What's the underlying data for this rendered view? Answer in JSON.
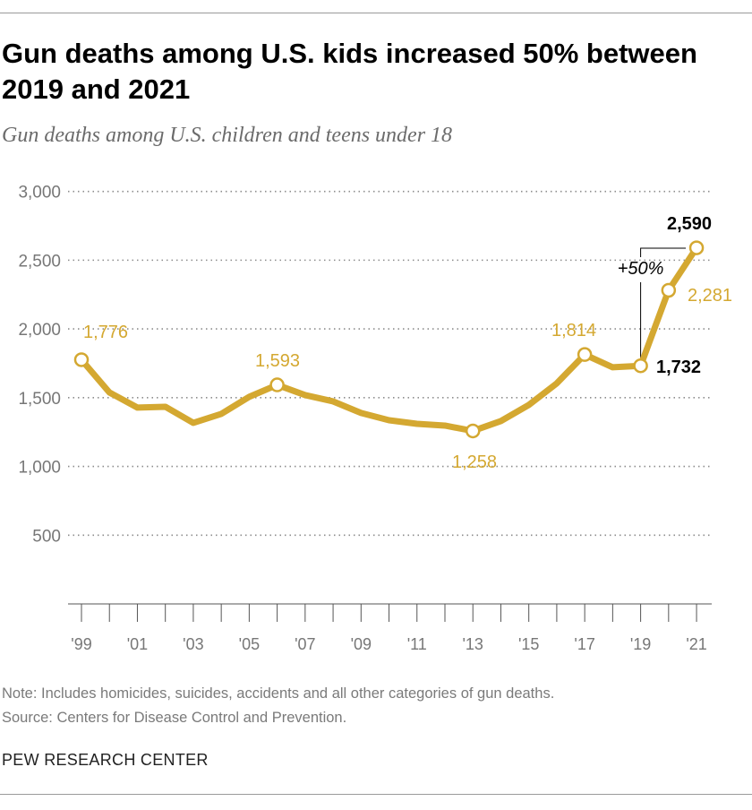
{
  "header": {
    "title": "Gun deaths among U.S. kids increased 50% between 2019 and 2021",
    "subtitle": "Gun deaths among U.S. children and teens under 18"
  },
  "footer": {
    "note": "Note: Includes homicides, suicides, accidents and all other categories of gun deaths.",
    "source": "Source: Centers for Disease Control and Prevention.",
    "brand": "PEW RESEARCH CENTER"
  },
  "chart_data": {
    "type": "line",
    "title": "Gun deaths among U.S. kids increased 50% between 2019 and 2021",
    "subtitle": "Gun deaths among U.S. children and teens under 18",
    "x": [
      1999,
      2000,
      2001,
      2002,
      2003,
      2004,
      2005,
      2006,
      2007,
      2008,
      2009,
      2010,
      2011,
      2012,
      2013,
      2014,
      2015,
      2016,
      2017,
      2018,
      2019,
      2020,
      2021
    ],
    "values": [
      1776,
      1538,
      1428,
      1434,
      1317,
      1382,
      1506,
      1593,
      1519,
      1473,
      1389,
      1336,
      1310,
      1297,
      1258,
      1330,
      1447,
      1604,
      1814,
      1721,
      1732,
      2281,
      2590
    ],
    "ylim": [
      0,
      3000
    ],
    "yticks": [
      500,
      1000,
      1500,
      2000,
      2500,
      3000
    ],
    "ytick_labels": [
      "500",
      "1,000",
      "1,500",
      "2,000",
      "2,500",
      "3,000"
    ],
    "xtick_labels": [
      {
        "year": 1999,
        "label": "'99"
      },
      {
        "year": 2001,
        "label": "'01"
      },
      {
        "year": 2003,
        "label": "'03"
      },
      {
        "year": 2005,
        "label": "'05"
      },
      {
        "year": 2007,
        "label": "'07"
      },
      {
        "year": 2009,
        "label": "'09"
      },
      {
        "year": 2011,
        "label": "'11"
      },
      {
        "year": 2013,
        "label": "'13"
      },
      {
        "year": 2015,
        "label": "'15"
      },
      {
        "year": 2017,
        "label": "'17"
      },
      {
        "year": 2019,
        "label": "'19"
      },
      {
        "year": 2021,
        "label": "'21"
      }
    ],
    "data_labels": [
      {
        "year": 1999,
        "text": "1,776",
        "bold": false
      },
      {
        "year": 2006,
        "text": "1,593",
        "bold": false
      },
      {
        "year": 2013,
        "text": "1,258",
        "bold": false
      },
      {
        "year": 2017,
        "text": "1,814",
        "bold": false
      },
      {
        "year": 2019,
        "text": "1,732",
        "bold": true
      },
      {
        "year": 2020,
        "text": "2,281",
        "bold": false
      },
      {
        "year": 2021,
        "text": "2,590",
        "bold": true
      }
    ],
    "annotation": "+50%",
    "grid": true,
    "line_color": "#d4a831",
    "grid_color": "#8c8c8c"
  }
}
